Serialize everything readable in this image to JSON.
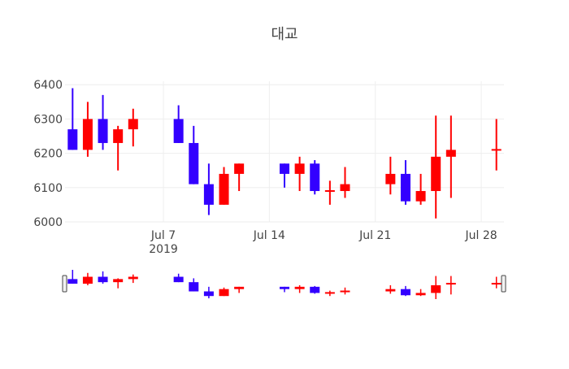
{
  "chart_data": {
    "type": "candlestick",
    "title": "대교",
    "x_tick_labels": [
      "Jul 7",
      "Jul 14",
      "Jul 21",
      "Jul 28"
    ],
    "x_tick_dates": [
      "2019-07-07",
      "2019-07-14",
      "2019-07-21",
      "2019-07-28"
    ],
    "x_year_label": "2019",
    "y_ticks": [
      6000,
      6100,
      6200,
      6300,
      6400
    ],
    "xlim": [
      "2019-07-01",
      "2019-07-29"
    ],
    "ylim": [
      6000,
      6410
    ],
    "increasing_color": "#ff0000",
    "decreasing_color": "#3300ff",
    "grid": true,
    "rangeslider": true,
    "candles": [
      {
        "date": "2019-07-01",
        "open": 6270,
        "high": 6390,
        "low": 6210,
        "close": 6210
      },
      {
        "date": "2019-07-02",
        "open": 6210,
        "high": 6350,
        "low": 6190,
        "close": 6300
      },
      {
        "date": "2019-07-03",
        "open": 6300,
        "high": 6370,
        "low": 6210,
        "close": 6230
      },
      {
        "date": "2019-07-04",
        "open": 6230,
        "high": 6280,
        "low": 6150,
        "close": 6270
      },
      {
        "date": "2019-07-05",
        "open": 6270,
        "high": 6330,
        "low": 6220,
        "close": 6300
      },
      {
        "date": "2019-07-08",
        "open": 6300,
        "high": 6340,
        "low": 6230,
        "close": 6230
      },
      {
        "date": "2019-07-09",
        "open": 6230,
        "high": 6280,
        "low": 6110,
        "close": 6110
      },
      {
        "date": "2019-07-10",
        "open": 6110,
        "high": 6170,
        "low": 6020,
        "close": 6050
      },
      {
        "date": "2019-07-11",
        "open": 6050,
        "high": 6160,
        "low": 6050,
        "close": 6140
      },
      {
        "date": "2019-07-12",
        "open": 6140,
        "high": 6170,
        "low": 6090,
        "close": 6170
      },
      {
        "date": "2019-07-15",
        "open": 6170,
        "high": 6170,
        "low": 6100,
        "close": 6140
      },
      {
        "date": "2019-07-16",
        "open": 6140,
        "high": 6190,
        "low": 6090,
        "close": 6170
      },
      {
        "date": "2019-07-17",
        "open": 6170,
        "high": 6180,
        "low": 6080,
        "close": 6090
      },
      {
        "date": "2019-07-18",
        "open": 6090,
        "high": 6120,
        "low": 6050,
        "close": 6090
      },
      {
        "date": "2019-07-19",
        "open": 6090,
        "high": 6160,
        "low": 6070,
        "close": 6110
      },
      {
        "date": "2019-07-22",
        "open": 6110,
        "high": 6190,
        "low": 6080,
        "close": 6140
      },
      {
        "date": "2019-07-23",
        "open": 6140,
        "high": 6180,
        "low": 6050,
        "close": 6060
      },
      {
        "date": "2019-07-24",
        "open": 6060,
        "high": 6140,
        "low": 6050,
        "close": 6090
      },
      {
        "date": "2019-07-25",
        "open": 6090,
        "high": 6310,
        "low": 6010,
        "close": 6190
      },
      {
        "date": "2019-07-26",
        "open": 6190,
        "high": 6310,
        "low": 6070,
        "close": 6210
      },
      {
        "date": "2019-07-29",
        "open": 6210,
        "high": 6300,
        "low": 6150,
        "close": 6210
      }
    ]
  }
}
